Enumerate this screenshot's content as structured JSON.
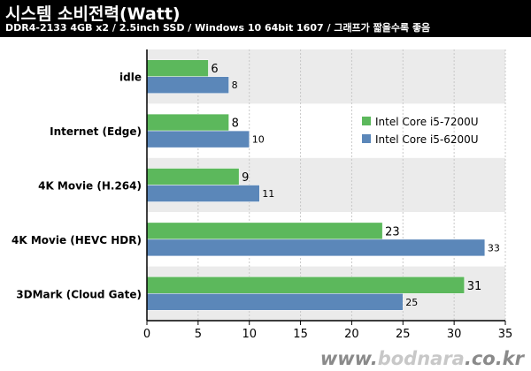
{
  "header": {
    "title": "시스템 소비전력(Watt)",
    "subtitle": "DDR4-2133 4GB x2 / 2.5inch SSD / Windows 10 64bit 1607 / 그래프가 짧을수록 좋음"
  },
  "watermark": {
    "prefix": "www.",
    "brand": "bodnara",
    "suffix": ".co.kr"
  },
  "chart_data": {
    "type": "bar",
    "orientation": "horizontal",
    "title": "시스템 소비전력(Watt)",
    "categories": [
      "idle",
      "Internet (Edge)",
      "4K Movie (H.264)",
      "4K Movie (HEVC HDR)",
      "3DMark (Cloud Gate)"
    ],
    "series": [
      {
        "name": "Intel Core i5-7200U",
        "values": [
          6,
          8,
          9,
          23,
          31
        ],
        "color": "#5cb85c"
      },
      {
        "name": "Intel Core i5-6200U",
        "values": [
          8,
          10,
          11,
          33,
          25
        ],
        "color": "#5b87b9"
      }
    ],
    "xlim": [
      0,
      35
    ],
    "xticks": [
      0,
      5,
      10,
      15,
      20,
      25,
      30,
      35
    ],
    "grid": "vertical",
    "legend": "top-right"
  }
}
